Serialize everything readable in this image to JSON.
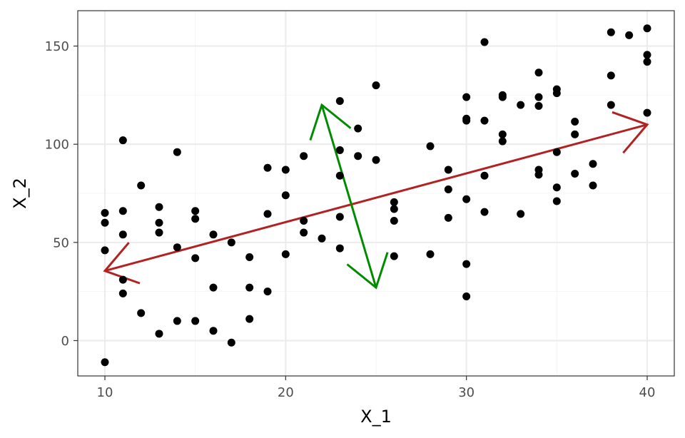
{
  "chart_data": {
    "type": "scatter",
    "title": "",
    "xlabel": "X_1",
    "ylabel": "X_2",
    "xlim": [
      8.5,
      41.5
    ],
    "ylim": [
      -18,
      168
    ],
    "x_ticks": [
      10,
      20,
      30,
      40
    ],
    "y_ticks": [
      0,
      50,
      100,
      150
    ],
    "x_minor": [
      15,
      25,
      35
    ],
    "y_minor": [
      25,
      75,
      125
    ],
    "grid": true,
    "theme": "black-and-white",
    "points": [
      [
        10,
        65
      ],
      [
        10,
        60
      ],
      [
        10,
        46
      ],
      [
        10,
        -11
      ],
      [
        11,
        102
      ],
      [
        11,
        66
      ],
      [
        11,
        54
      ],
      [
        11,
        31
      ],
      [
        11,
        24
      ],
      [
        12,
        79
      ],
      [
        12,
        14
      ],
      [
        13,
        68
      ],
      [
        13,
        60
      ],
      [
        13,
        55
      ],
      [
        13,
        3.5
      ],
      [
        14,
        96
      ],
      [
        14,
        47.5
      ],
      [
        14,
        10
      ],
      [
        15,
        66
      ],
      [
        15,
        62
      ],
      [
        15,
        42
      ],
      [
        15,
        10
      ],
      [
        16,
        54
      ],
      [
        16,
        27
      ],
      [
        16,
        5
      ],
      [
        17,
        50
      ],
      [
        17,
        -1
      ],
      [
        18,
        42.5
      ],
      [
        18,
        27
      ],
      [
        18,
        11
      ],
      [
        19,
        88
      ],
      [
        19,
        64.5
      ],
      [
        19,
        25
      ],
      [
        20,
        87
      ],
      [
        20,
        74
      ],
      [
        20,
        44
      ],
      [
        21,
        94
      ],
      [
        21,
        61
      ],
      [
        21,
        55
      ],
      [
        22,
        52
      ],
      [
        23,
        122
      ],
      [
        23,
        97
      ],
      [
        23,
        84
      ],
      [
        23,
        63
      ],
      [
        23,
        47
      ],
      [
        24,
        108
      ],
      [
        24,
        94
      ],
      [
        25,
        130
      ],
      [
        25,
        92
      ],
      [
        26,
        70.5
      ],
      [
        26,
        67
      ],
      [
        26,
        61
      ],
      [
        26,
        43
      ],
      [
        28,
        99
      ],
      [
        28,
        44
      ],
      [
        29,
        87
      ],
      [
        29,
        77
      ],
      [
        29,
        62.5
      ],
      [
        30,
        124
      ],
      [
        30,
        113
      ],
      [
        30,
        112
      ],
      [
        30,
        72
      ],
      [
        30,
        39
      ],
      [
        30,
        22.5
      ],
      [
        31,
        152
      ],
      [
        31,
        112
      ],
      [
        31,
        84
      ],
      [
        31,
        65.5
      ],
      [
        32,
        125
      ],
      [
        32,
        124
      ],
      [
        32,
        105
      ],
      [
        32,
        101.5
      ],
      [
        33,
        120
      ],
      [
        33,
        64.5
      ],
      [
        34,
        136.5
      ],
      [
        34,
        124
      ],
      [
        34,
        119.5
      ],
      [
        34,
        87
      ],
      [
        34,
        84.5
      ],
      [
        35,
        128
      ],
      [
        35,
        126
      ],
      [
        35,
        96
      ],
      [
        35,
        78
      ],
      [
        35,
        71
      ],
      [
        36,
        111.5
      ],
      [
        36,
        105
      ],
      [
        36,
        85
      ],
      [
        37,
        90
      ],
      [
        37,
        79
      ],
      [
        38,
        157
      ],
      [
        38,
        135
      ],
      [
        38,
        120
      ],
      [
        39,
        155.5
      ],
      [
        40,
        159
      ],
      [
        40,
        145.5
      ],
      [
        40,
        142
      ],
      [
        40,
        116
      ]
    ],
    "arrows": [
      {
        "name": "first-component",
        "color": "#b22222",
        "from": [
          10,
          35.5
        ],
        "to": [
          40,
          110
        ]
      },
      {
        "name": "second-component",
        "color": "#008b00",
        "from": [
          22,
          120
        ],
        "to": [
          25,
          27
        ]
      }
    ],
    "colors": {
      "points": "#000000",
      "grid_major": "#ebebeb",
      "grid_minor": "#f5f5f5",
      "panel_border": "#333333"
    }
  }
}
